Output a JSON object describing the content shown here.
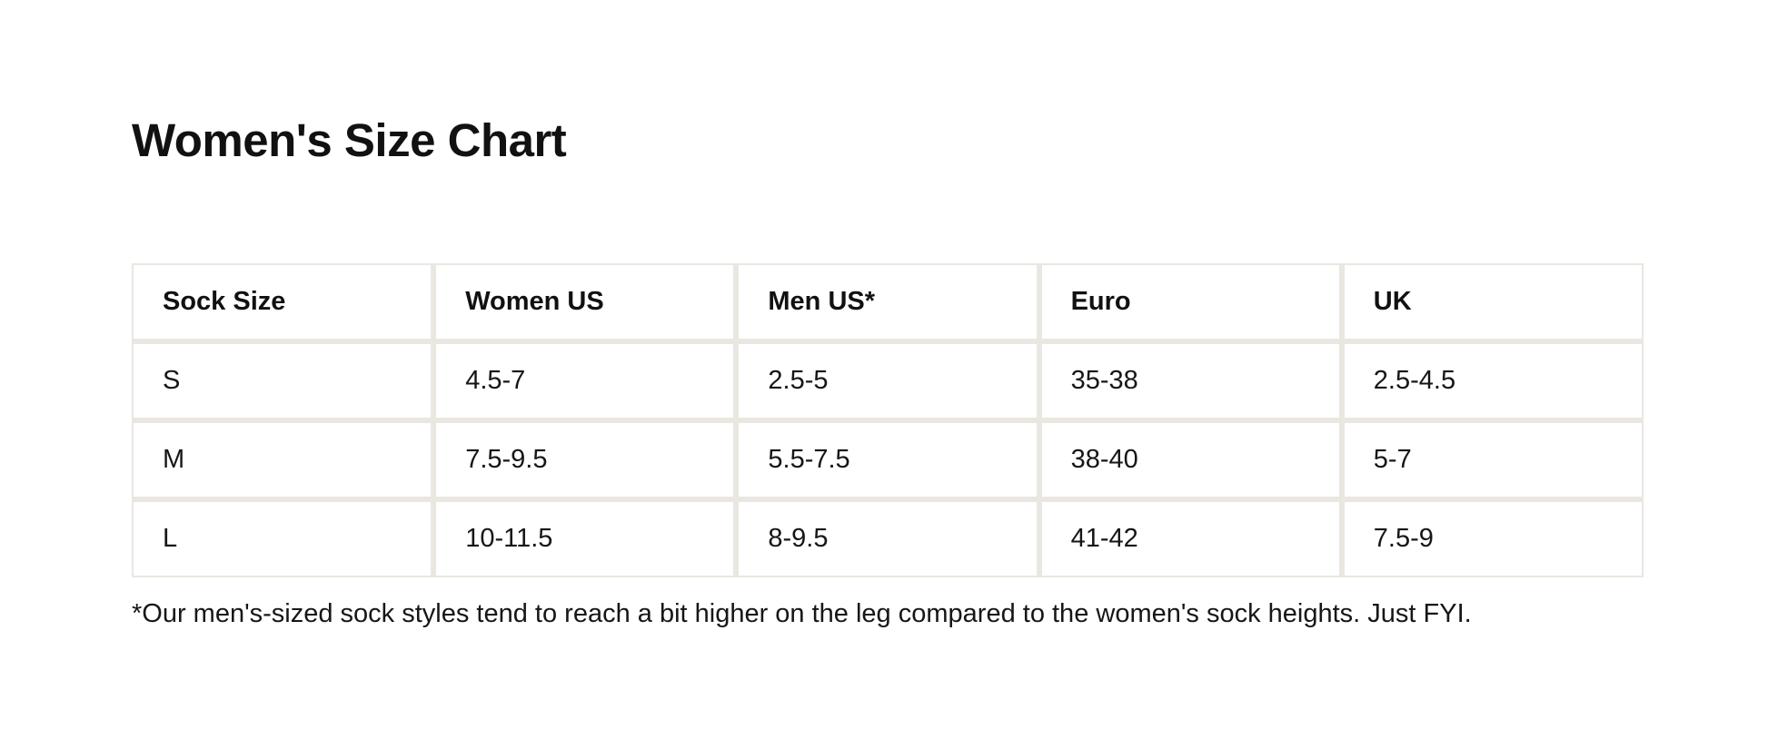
{
  "page": {
    "title": "Women's Size Chart",
    "background_color": "#ffffff",
    "text_color": "#161616",
    "table_border_color": "#eae7e1"
  },
  "table": {
    "headers": [
      "Sock Size",
      "Women US",
      "Men US*",
      "Euro",
      "UK"
    ],
    "rows": [
      {
        "cells": [
          "S",
          "4.5-7",
          "2.5-5",
          "35-38",
          "2.5-4.5"
        ]
      },
      {
        "cells": [
          "M",
          "7.5-9.5",
          "5.5-7.5",
          "38-40",
          "5-7"
        ]
      },
      {
        "cells": [
          "L",
          "10-11.5",
          "8-9.5",
          "41-42",
          "7.5-9"
        ]
      }
    ]
  },
  "footnote": "*Our men's-sized sock styles tend to reach a bit higher on the leg compared to the women's sock heights. Just FYI."
}
